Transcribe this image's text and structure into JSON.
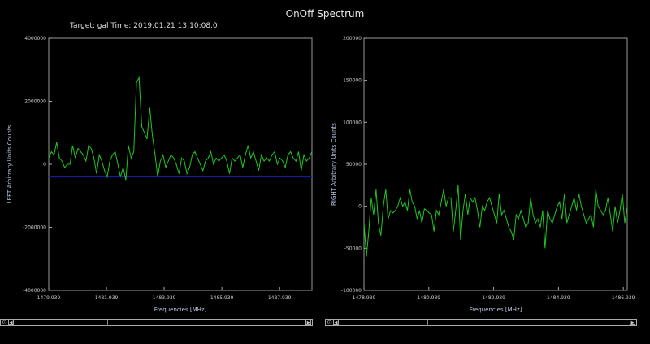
{
  "window_title": "OnOff Spectrum",
  "subtitle": "Target: gal  Time: 2019.01.21 13:10:08.0",
  "chart_data": [
    {
      "type": "line",
      "name": "left",
      "xlabel": "Frequencies [MHz]",
      "ylabel": "LEFT  Arbitrary Units Counts",
      "xlim": [
        1479.939,
        1489.06
      ],
      "ylim": [
        -4000000,
        4000000
      ],
      "xticks": [
        1479.939,
        1481.939,
        1483.939,
        1485.939,
        1487.939
      ],
      "xtick_labels": [
        "1479.939",
        "1481.939",
        "1483.939",
        "1485.939",
        "1487.939"
      ],
      "yticks": [
        -4000000,
        -2000000,
        0,
        2000000,
        4000000
      ],
      "ytick_labels": [
        "-4000000",
        "-2000000",
        "0",
        "2000000",
        "4000000"
      ],
      "baseline": -400000,
      "baseline_color": "#1a1aa0",
      "line_color": "#1ec81e",
      "x_start": 1479.939,
      "x_step": 0.0921,
      "values": [
        200000,
        400000,
        300000,
        700000,
        200000,
        100000,
        -100000,
        0,
        0,
        600000,
        200000,
        500000,
        400000,
        300000,
        100000,
        600000,
        500000,
        200000,
        -300000,
        300000,
        100000,
        -200000,
        -400000,
        100000,
        300000,
        400000,
        0,
        -400000,
        -100000,
        -500000,
        600000,
        200000,
        400000,
        2600000,
        2750000,
        1200000,
        1000000,
        800000,
        1800000,
        900000,
        300000,
        -400000,
        100000,
        300000,
        -100000,
        100000,
        300000,
        200000,
        0,
        -300000,
        200000,
        100000,
        -300000,
        -100000,
        300000,
        400000,
        200000,
        0,
        -200000,
        100000,
        200000,
        400000,
        0,
        200000,
        100000,
        200000,
        300000,
        100000,
        -300000,
        200000,
        100000,
        200000,
        300000,
        -100000,
        300000,
        600000,
        200000,
        400000,
        100000,
        -200000,
        300000,
        100000,
        200000,
        100000,
        300000,
        400000,
        0,
        200000,
        100000,
        -100000,
        300000,
        400000,
        200000,
        100000,
        400000,
        -200000,
        300000,
        100000,
        200000,
        400000
      ]
    },
    {
      "type": "line",
      "name": "right",
      "xlabel": "Frequencies [MHz]",
      "ylabel": "RIGHT  Arbitrary Units Counts",
      "xlim": [
        1478.939,
        1487.06
      ],
      "ylim": [
        -100000,
        200000
      ],
      "xticks": [
        1478.939,
        1480.939,
        1482.939,
        1484.939,
        1486.939
      ],
      "xtick_labels": [
        "1478.939",
        "1480.939",
        "1482.939",
        "1484.939",
        "1486.939"
      ],
      "yticks": [
        -100000,
        -50000,
        0,
        50000,
        100000,
        150000,
        200000
      ],
      "ytick_labels": [
        "-100000",
        "-50000",
        "0",
        "50000",
        "100000",
        "150000",
        "200000"
      ],
      "line_color": "#1ec81e",
      "x_start": 1478.939,
      "x_step": 0.0745,
      "values": [
        -20000,
        -60000,
        -30000,
        10000,
        -10000,
        20000,
        -20000,
        -35000,
        0,
        20000,
        -15000,
        -5000,
        -8000,
        -5000,
        0,
        10000,
        0,
        5000,
        -5000,
        20000,
        5000,
        0,
        -15000,
        -5000,
        -20000,
        -3000,
        -5000,
        -8000,
        -10000,
        -30000,
        -5000,
        -10000,
        5000,
        20000,
        0,
        10000,
        10000,
        -30000,
        -5000,
        25000,
        -40000,
        -5000,
        15000,
        -10000,
        10000,
        5000,
        10000,
        -5000,
        -25000,
        0,
        -5000,
        5000,
        10000,
        0,
        -10000,
        -20000,
        15000,
        -10000,
        -5000,
        -15000,
        -25000,
        -30000,
        -40000,
        -10000,
        -15000,
        -5000,
        -15000,
        -25000,
        -20000,
        10000,
        -10000,
        -20000,
        -15000,
        -25000,
        -5000,
        -50000,
        -5000,
        -15000,
        -20000,
        -10000,
        0,
        5000,
        -15000,
        15000,
        -20000,
        -10000,
        0,
        10000,
        -5000,
        15000,
        0,
        -10000,
        -20000,
        -15000,
        -10000,
        -25000,
        20000,
        0,
        -5000,
        -10000,
        -5000,
        10000,
        -10000,
        -30000,
        0,
        -20000,
        -5000,
        15000,
        -20000,
        0
      ]
    }
  ]
}
